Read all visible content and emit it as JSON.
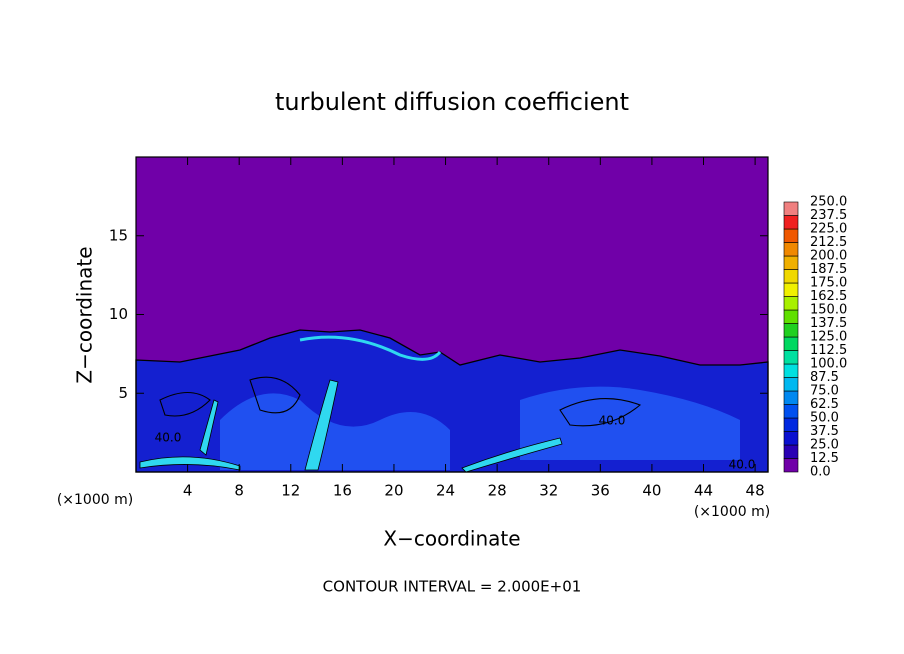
{
  "chart_data": {
    "type": "contour",
    "title": "turbulent diffusion coefficient",
    "xlabel": "X−coordinate",
    "ylabel": "Z−coordinate",
    "x_unit": "(×1000 m)",
    "y_unit": "(×1000 m)",
    "footnote": "CONTOUR INTERVAL = 2.000E+01",
    "xlim": [
      0,
      49
    ],
    "xticks": [
      4,
      8,
      12,
      16,
      20,
      24,
      28,
      32,
      36,
      40,
      44,
      48
    ],
    "ylim": [
      0,
      20
    ],
    "yticks": [
      5,
      10,
      15
    ],
    "contour_labels": [
      "40.0",
      "40.0",
      "40.0"
    ],
    "colorbar": {
      "levels": [
        {
          "value": 0,
          "label": "0.0"
        },
        {
          "value": 12.5,
          "label": "12.5"
        },
        {
          "value": 25,
          "label": "25.0"
        },
        {
          "value": 37.5,
          "label": "37.5"
        },
        {
          "value": 50,
          "label": "50.0"
        },
        {
          "value": 62.5,
          "label": "62.5"
        },
        {
          "value": 75,
          "label": "75.0"
        },
        {
          "value": 87.5,
          "label": "87.5"
        },
        {
          "value": 100,
          "label": "100.0"
        },
        {
          "value": 112.5,
          "label": "112.5"
        },
        {
          "value": 125,
          "label": "125.0"
        },
        {
          "value": 137.5,
          "label": "137.5"
        },
        {
          "value": 150,
          "label": "150.0"
        },
        {
          "value": 162.5,
          "label": "162.5"
        },
        {
          "value": 175,
          "label": "175.0"
        },
        {
          "value": 187.5,
          "label": "187.5"
        },
        {
          "value": 200,
          "label": "200.0"
        },
        {
          "value": 212.5,
          "label": "212.5"
        },
        {
          "value": 225,
          "label": "225.0"
        },
        {
          "value": 237.5,
          "label": "237.5"
        },
        {
          "value": 250,
          "label": "250.0"
        }
      ],
      "colors": [
        "#7000a8",
        "#2a00b4",
        "#0a10d0",
        "#0028e0",
        "#0050f0",
        "#0088f0",
        "#00b8f0",
        "#00e0e0",
        "#00e0a0",
        "#00d860",
        "#20d020",
        "#60e000",
        "#a8f000",
        "#f0f000",
        "#f0d800",
        "#f0b000",
        "#f08800",
        "#f05800",
        "#f02020",
        "#f08080"
      ]
    }
  }
}
